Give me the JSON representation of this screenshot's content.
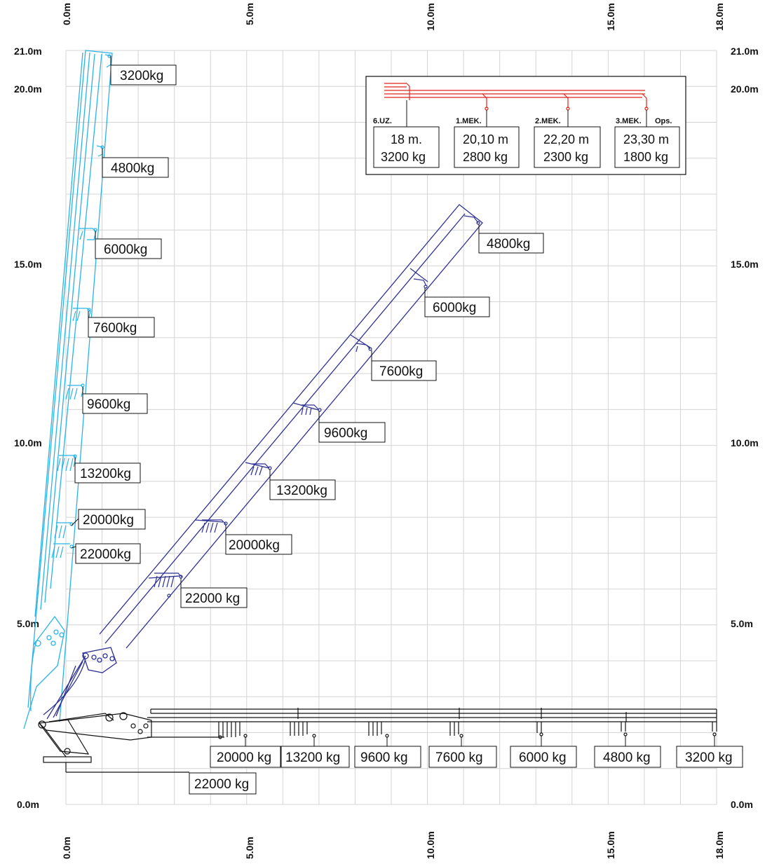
{
  "axes": {
    "x_ticks": [
      "0.0m",
      "5.0m",
      "10.0m",
      "15.0m",
      "18.0m"
    ],
    "y_ticks": [
      "0.0m",
      "5.0m",
      "10.0m",
      "15.0m",
      "20.0m",
      "21.0m"
    ]
  },
  "colors": {
    "vertical_boom": "#2bb3e6",
    "diagonal_boom": "#2e3192",
    "horizontal_boom": "#111111",
    "legend_boom": "#e2231a",
    "grid": "#d4d4d4"
  },
  "booms": {
    "vertical": {
      "labels": [
        "3200kg",
        "4800kg",
        "6000kg",
        "7600kg",
        "9600kg",
        "13200kg",
        "20000kg",
        "22000kg"
      ]
    },
    "diagonal": {
      "labels": [
        "4800kg",
        "6000kg",
        "7600kg",
        "9600kg",
        "13200kg",
        "20000kg",
        "22000 kg"
      ]
    },
    "horizontal": {
      "labels": [
        "20000 kg",
        "13200 kg",
        "9600 kg",
        "7600 kg",
        "6000 kg",
        "4800 kg",
        "3200 kg"
      ],
      "base_label": "22000 kg"
    }
  },
  "legend": {
    "tags": [
      "6.UZ.",
      "1.MEK.",
      "2.MEK.",
      "3.MEK.",
      "Ops."
    ],
    "cells": [
      {
        "reach": "18 m.",
        "load": "3200 kg"
      },
      {
        "reach": "20,10 m",
        "load": "2800 kg"
      },
      {
        "reach": "22,20 m",
        "load": "2300 kg"
      },
      {
        "reach": "23,30 m",
        "load": "1800 kg"
      }
    ]
  }
}
